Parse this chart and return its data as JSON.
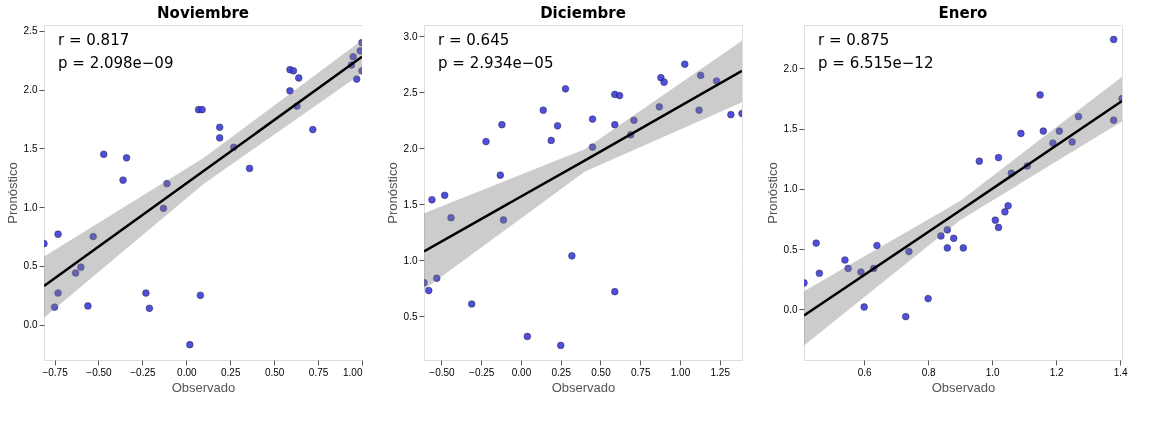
{
  "chart_data": [
    {
      "type": "scatter",
      "title": "Noviembre",
      "xlabel": "Observado",
      "ylabel": "Pronóstico",
      "xlim": [
        -0.81,
        1.0
      ],
      "ylim": [
        -0.3,
        2.55
      ],
      "xticks": [
        {
          "value": -0.75,
          "label": "−0.75"
        },
        {
          "value": -0.5,
          "label": "−0.50"
        },
        {
          "value": -0.25,
          "label": "−0.25"
        },
        {
          "value": 0,
          "label": "0.00"
        },
        {
          "value": 0.25,
          "label": "0.25"
        },
        {
          "value": 0.5,
          "label": "0.50"
        },
        {
          "value": 0.75,
          "label": "0.75"
        },
        {
          "value": 1,
          "label": "1.00"
        }
      ],
      "yticks": [
        {
          "value": 0,
          "label": "0.0"
        },
        {
          "value": 0.5,
          "label": "0.5"
        },
        {
          "value": 1,
          "label": "1.0"
        },
        {
          "value": 1.5,
          "label": "1.5"
        },
        {
          "value": 2,
          "label": "2.0"
        },
        {
          "value": 2.5,
          "label": "2.5"
        }
      ],
      "grid": true,
      "marker": "circle",
      "annotations": [
        "r = 0.817",
        "p = 2.098e−09"
      ],
      "series": [
        {
          "color": "#3b3bdc",
          "x": [
            -0.81,
            -0.73,
            -0.53,
            -0.6,
            -0.63,
            -0.73,
            -0.75,
            -0.56,
            -0.47,
            -0.34,
            -0.36,
            -0.11,
            -0.13,
            -0.23,
            -0.21,
            0.02,
            0.08,
            0.07,
            0.09,
            0.19,
            0.19,
            0.27,
            0.36,
            0.59,
            0.59,
            0.61,
            0.64,
            0.63,
            0.72,
            0.94,
            0.95,
            0.99,
            1.0,
            0.97,
            1.0
          ],
          "values": [
            0.69,
            0.77,
            0.75,
            0.49,
            0.44,
            0.27,
            0.15,
            0.16,
            1.45,
            1.42,
            1.23,
            1.2,
            0.99,
            0.27,
            0.14,
            -0.17,
            0.25,
            1.83,
            1.83,
            1.68,
            1.59,
            1.51,
            1.33,
            1.99,
            2.17,
            2.16,
            2.1,
            1.86,
            1.66,
            2.21,
            2.28,
            2.33,
            2.4,
            2.09,
            2.16
          ]
        },
        {
          "type": "line",
          "marker": "none",
          "color": "#000000",
          "x": [
            -0.81,
            0.1,
            1.0
          ],
          "values": [
            0.33,
            1.31,
            2.28
          ],
          "lower": [
            0.06,
            1.2,
            2.14
          ],
          "upper": [
            0.58,
            1.42,
            2.42
          ]
        }
      ]
    },
    {
      "type": "scatter",
      "title": "Diciembre",
      "xlabel": "Observado",
      "ylabel": "Pronóstico",
      "xlim": [
        -0.61,
        1.39
      ],
      "ylim": [
        0.11,
        3.1
      ],
      "xticks": [
        {
          "value": -0.5,
          "label": "−0.50"
        },
        {
          "value": -0.25,
          "label": "−0.25"
        },
        {
          "value": 0,
          "label": "0.00"
        },
        {
          "value": 0.25,
          "label": "0.25"
        },
        {
          "value": 0.5,
          "label": "0.50"
        },
        {
          "value": 0.75,
          "label": "0.75"
        },
        {
          "value": 1,
          "label": "1.00"
        },
        {
          "value": 1.25,
          "label": "1.25"
        }
      ],
      "yticks": [
        {
          "value": 0.5,
          "label": "0.5"
        },
        {
          "value": 1,
          "label": "1.0"
        },
        {
          "value": 1.5,
          "label": "1.5"
        },
        {
          "value": 2,
          "label": "2.0"
        },
        {
          "value": 2.5,
          "label": "2.5"
        },
        {
          "value": 3,
          "label": "3.0"
        }
      ],
      "grid": true,
      "marker": "circle",
      "annotations": [
        "r = 0.645",
        "p = 2.934e−05"
      ],
      "series": [
        {
          "color": "#3b3bdc",
          "x": [
            -0.61,
            -0.58,
            -0.53,
            -0.56,
            -0.48,
            -0.44,
            -0.31,
            -0.22,
            -0.13,
            -0.12,
            -0.11,
            0.04,
            0.14,
            0.19,
            0.23,
            0.28,
            0.25,
            0.32,
            0.45,
            0.45,
            0.59,
            0.62,
            0.59,
            0.59,
            0.69,
            0.71,
            0.87,
            0.88,
            0.9,
            1.03,
            1.13,
            1.12,
            1.23,
            1.32,
            1.39
          ],
          "values": [
            0.8,
            0.73,
            0.84,
            1.54,
            1.58,
            1.38,
            0.61,
            2.06,
            1.76,
            2.21,
            1.36,
            0.32,
            2.34,
            2.07,
            2.2,
            2.53,
            0.24,
            1.04,
            2.26,
            2.01,
            2.48,
            2.47,
            2.21,
            0.72,
            2.12,
            2.25,
            2.37,
            2.63,
            2.59,
            2.75,
            2.65,
            2.34,
            2.6,
            2.3,
            2.31
          ]
        },
        {
          "type": "line",
          "marker": "none",
          "color": "#000000",
          "x": [
            -0.61,
            0.4,
            1.39
          ],
          "values": [
            1.08,
            1.89,
            2.69
          ],
          "lower": [
            0.74,
            1.79,
            2.41
          ],
          "upper": [
            1.42,
            1.99,
            2.96
          ]
        }
      ]
    },
    {
      "type": "scatter",
      "title": "Enero",
      "xlabel": "Observado",
      "ylabel": "Pronóstico",
      "xlim": [
        0.412,
        1.406
      ],
      "ylim": [
        -0.42,
        2.36
      ],
      "xticks": [
        {
          "value": 0.6,
          "label": "0.6"
        },
        {
          "value": 0.8,
          "label": "0.8"
        },
        {
          "value": 1,
          "label": "1.0"
        },
        {
          "value": 1.2,
          "label": "1.2"
        },
        {
          "value": 1.4,
          "label": "1.4"
        }
      ],
      "yticks": [
        {
          "value": 0,
          "label": "0.0"
        },
        {
          "value": 0.5,
          "label": "0.5"
        },
        {
          "value": 1,
          "label": "1.0"
        },
        {
          "value": 1.5,
          "label": "1.5"
        },
        {
          "value": 2,
          "label": "2.0"
        }
      ],
      "grid": true,
      "marker": "circle",
      "annotations": [
        "r = 0.875",
        "p = 6.515e−12"
      ],
      "series": [
        {
          "color": "#3b3bdc",
          "x": [
            0.412,
            0.45,
            0.46,
            0.54,
            0.55,
            0.59,
            0.63,
            0.64,
            0.6,
            0.74,
            0.73,
            0.8,
            0.84,
            0.86,
            0.86,
            0.88,
            0.91,
            0.96,
            1.01,
            1.02,
            1.02,
            1.04,
            1.05,
            1.06,
            1.09,
            1.11,
            1.15,
            1.16,
            1.19,
            1.21,
            1.25,
            1.27,
            1.38,
            1.38,
            1.406
          ],
          "values": [
            0.22,
            0.55,
            0.3,
            0.41,
            0.34,
            0.31,
            0.34,
            0.53,
            0.02,
            0.48,
            -0.06,
            0.09,
            0.61,
            0.66,
            0.51,
            0.59,
            0.51,
            1.23,
            0.74,
            0.68,
            1.26,
            0.81,
            0.86,
            1.13,
            1.46,
            1.19,
            1.78,
            1.48,
            1.38,
            1.48,
            1.39,
            1.6,
            2.24,
            1.57,
            1.75
          ]
        },
        {
          "type": "line",
          "marker": "none",
          "color": "#000000",
          "x": [
            0.412,
            0.9,
            1.406
          ],
          "values": [
            -0.05,
            0.82,
            1.73
          ],
          "lower": [
            -0.3,
            0.74,
            1.56
          ],
          "upper": [
            0.15,
            0.9,
            1.93
          ]
        }
      ]
    }
  ]
}
